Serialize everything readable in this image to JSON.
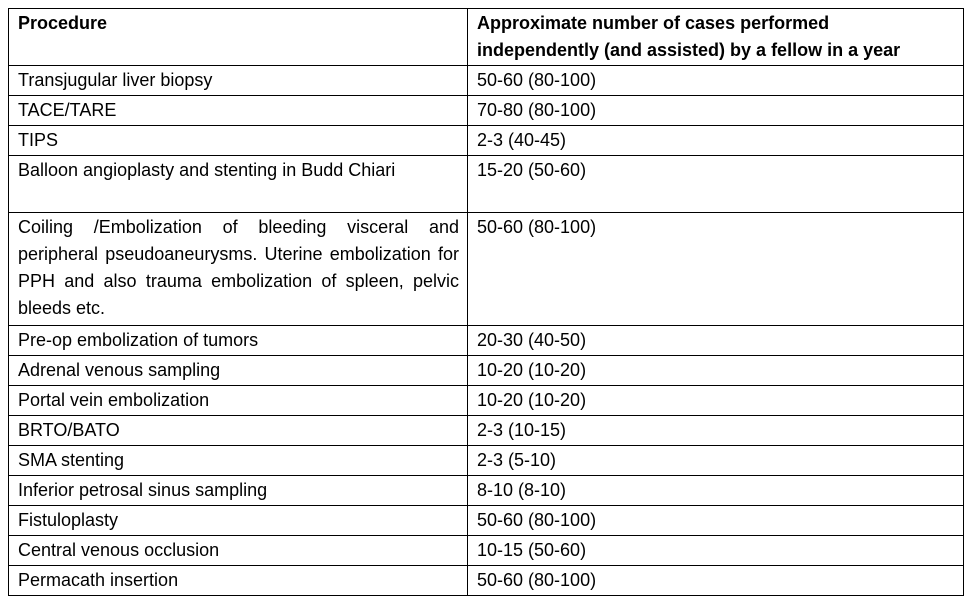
{
  "table": {
    "headers": {
      "procedure": "Procedure",
      "cases": "Approximate number of cases performed independently (and assisted) by a fellow in a year"
    },
    "rows": [
      {
        "procedure": "Transjugular liver biopsy",
        "cases": "50-60 (80-100)"
      },
      {
        "procedure": "TACE/TARE",
        "cases": "70-80 (80-100)"
      },
      {
        "procedure": "TIPS",
        "cases": "2-3 (40-45)"
      },
      {
        "procedure": "Balloon angioplasty and stenting in Budd Chiari",
        "cases": "15-20 (50-60)"
      },
      {
        "procedure": "Coiling /Embolization of bleeding visceral and peripheral pseudoaneurysms. Uterine embolization for PPH and also trauma embolization of spleen, pelvic bleeds etc.",
        "cases": "50-60 (80-100)"
      },
      {
        "procedure": "Pre-op embolization of tumors",
        "cases": "20-30 (40-50)"
      },
      {
        "procedure": "Adrenal venous sampling",
        "cases": "10-20 (10-20)"
      },
      {
        "procedure": "Portal vein embolization",
        "cases": "10-20 (10-20)"
      },
      {
        "procedure": "BRTO/BATO",
        "cases": "2-3 (10-15)"
      },
      {
        "procedure": "SMA stenting",
        "cases": "2-3 (5-10)"
      },
      {
        "procedure": "Inferior petrosal sinus sampling",
        "cases": "8-10 (8-10)"
      },
      {
        "procedure": "Fistuloplasty",
        "cases": "50-60 (80-100)"
      },
      {
        "procedure": "Central venous occlusion",
        "cases": "10-15 (50-60)"
      },
      {
        "procedure": "Permacath insertion",
        "cases": "50-60 (80-100)"
      }
    ]
  }
}
